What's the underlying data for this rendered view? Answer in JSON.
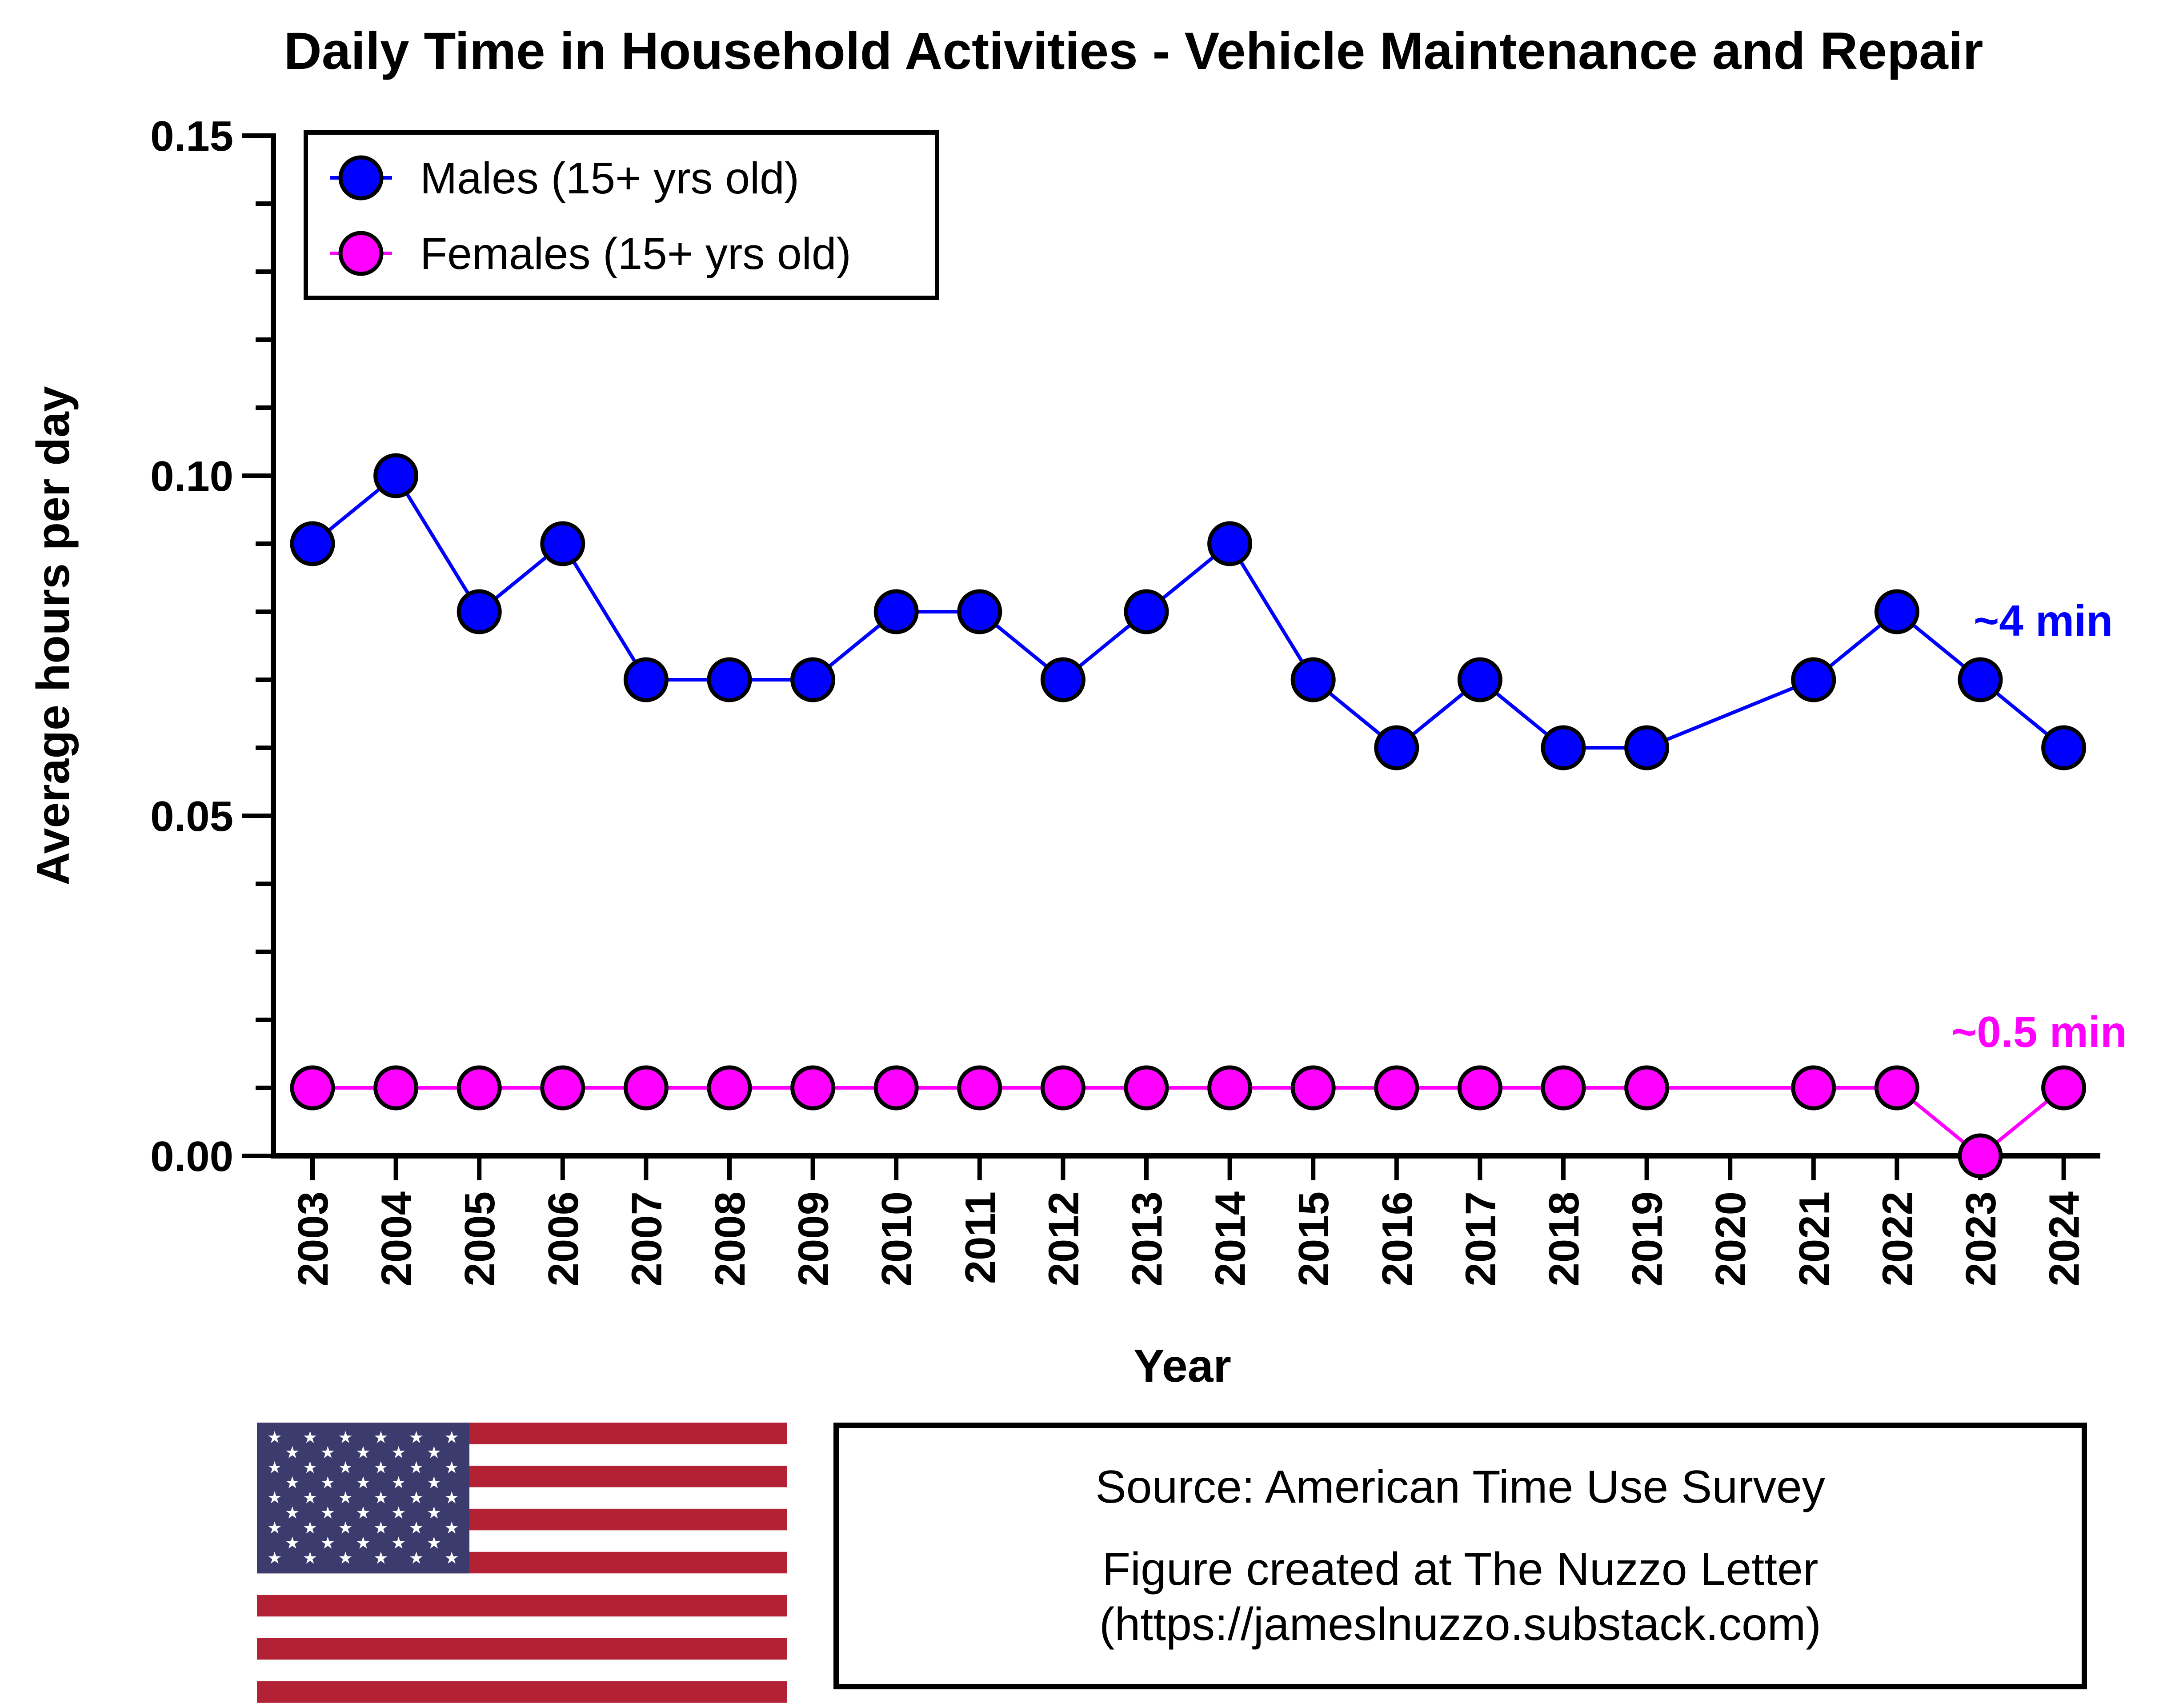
{
  "chart_data": {
    "type": "line",
    "title": "Daily Time in Household Activities - Vehicle Maintenance and Repair",
    "xlabel": "Year",
    "ylabel": "Average hours per day",
    "ylim": [
      0,
      0.15
    ],
    "yticks": [
      "0.00",
      "0.05",
      "0.10",
      "0.15"
    ],
    "categories": [
      "2003",
      "2004",
      "2005",
      "2006",
      "2007",
      "2008",
      "2009",
      "2010",
      "2011",
      "2012",
      "2013",
      "2014",
      "2015",
      "2016",
      "2017",
      "2018",
      "2019",
      "2020",
      "2021",
      "2022",
      "2023",
      "2024"
    ],
    "legend_position": "top-left",
    "series": [
      {
        "name": "Males (15+ yrs old)",
        "color": "#0000ff",
        "values": [
          0.09,
          0.1,
          0.08,
          0.09,
          0.07,
          0.07,
          0.07,
          0.08,
          0.08,
          0.07,
          0.08,
          0.09,
          0.07,
          0.06,
          0.07,
          0.06,
          0.06,
          null,
          0.07,
          0.08,
          0.07,
          0.06
        ]
      },
      {
        "name": "Females (15+ yrs old)",
        "color": "#ff00ff",
        "values": [
          0.01,
          0.01,
          0.01,
          0.01,
          0.01,
          0.01,
          0.01,
          0.01,
          0.01,
          0.01,
          0.01,
          0.01,
          0.01,
          0.01,
          0.01,
          0.01,
          0.01,
          null,
          0.01,
          0.01,
          0.0,
          0.01
        ]
      }
    ],
    "annotations": [
      {
        "text": "~4 min",
        "color": "#0000ff"
      },
      {
        "text": "~0.5 min",
        "color": "#ff00ff"
      }
    ]
  },
  "source": {
    "line1": "Source: American Time Use Survey",
    "line2": "Figure created at The Nuzzo Letter",
    "line3": "(https://jameslnuzzo.substack.com)"
  },
  "flag": {
    "name": "us-flag",
    "colors": {
      "red": "#b22234",
      "white": "#ffffff",
      "blue": "#3c3b6e"
    }
  }
}
